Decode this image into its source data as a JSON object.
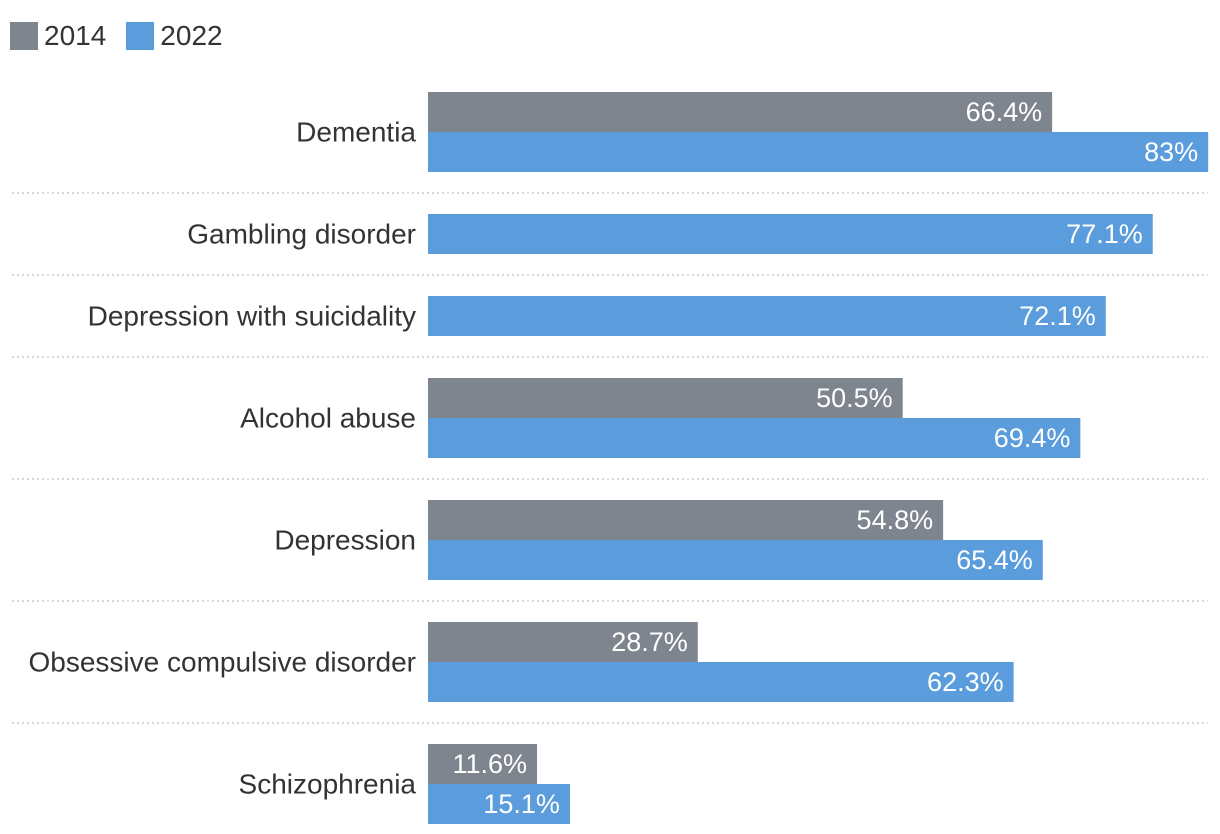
{
  "colors": {
    "series_2014": "#7f858f",
    "series_2022": "#5b9ddc",
    "label_text": "#333333",
    "value_text": "#ffffff",
    "separator": "#c8c8c8"
  },
  "legend": [
    {
      "name": "2014",
      "color": "#7f858f"
    },
    {
      "name": "2022",
      "color": "#5b9ddc"
    }
  ],
  "chart_data": {
    "type": "bar",
    "orientation": "horizontal",
    "title": "",
    "xlabel": "",
    "ylabel": "",
    "xlim": [
      0,
      100
    ],
    "grid": false,
    "legend_position": "top-left",
    "categories": [
      "Dementia",
      "Gambling disorder",
      "Depression with suicidality",
      "Alcohol abuse",
      "Depression",
      "Obsessive compulsive disorder",
      "Schizophrenia"
    ],
    "series": [
      {
        "name": "2014",
        "values": [
          66.4,
          null,
          null,
          50.5,
          54.8,
          28.7,
          11.6
        ],
        "labels": [
          "66.4%",
          null,
          null,
          "50.5%",
          "54.8%",
          "28.7%",
          "11.6%"
        ]
      },
      {
        "name": "2022",
        "values": [
          83,
          77.1,
          72.1,
          69.4,
          65.4,
          62.3,
          15.1
        ],
        "labels": [
          "83%",
          "77.1%",
          "72.1%",
          "69.4%",
          "65.4%",
          "62.3%",
          "15.1%"
        ]
      }
    ]
  }
}
